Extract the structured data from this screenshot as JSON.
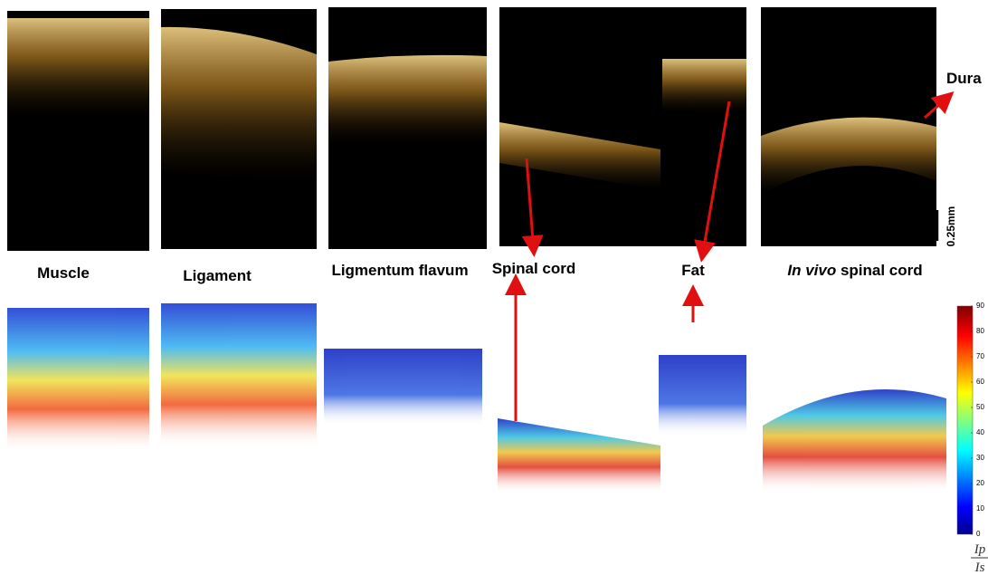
{
  "panels": [
    "Muscle",
    "Ligament",
    "Ligmentum flavum",
    "Spinal cord",
    "Fat"
  ],
  "in_vivo": {
    "italic": "In vivo",
    "rest": "spinal cord"
  },
  "dura": "Dura",
  "scale_bar": "0.25mm",
  "colorbar": {
    "range": [
      0,
      90
    ],
    "ticks": [
      0,
      10,
      20,
      30,
      40,
      50,
      60,
      70,
      80,
      90
    ],
    "numerator": "Ip",
    "denominator": "Is"
  }
}
